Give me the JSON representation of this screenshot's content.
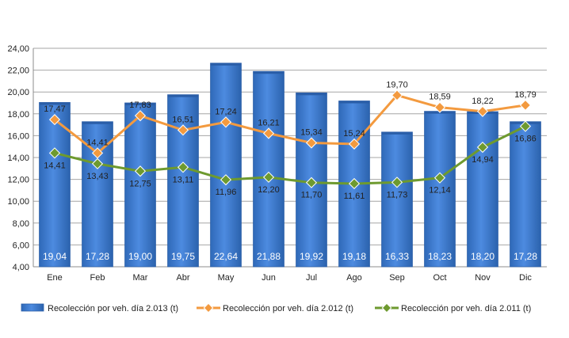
{
  "chart_data": {
    "type": "bar",
    "categories": [
      "Ene",
      "Feb",
      "Mar",
      "Abr",
      "May",
      "Jun",
      "Jul",
      "Ago",
      "Sep",
      "Oct",
      "Nov",
      "Dic"
    ],
    "ylim": [
      4,
      24
    ],
    "yticks": [
      "4,00",
      "6,00",
      "8,00",
      "10,00",
      "12,00",
      "14,00",
      "16,00",
      "18,00",
      "20,00",
      "22,00",
      "24,00"
    ],
    "grid": true,
    "legend_position": "bottom",
    "series": [
      {
        "name": "Recolección por veh. día 2.013 (t)",
        "kind": "bar",
        "color": "#3f7ccc",
        "values": [
          19.04,
          17.28,
          19.0,
          19.75,
          22.64,
          21.88,
          19.92,
          19.18,
          16.33,
          18.23,
          18.2,
          17.28
        ],
        "labels": [
          "19,04",
          "17,28",
          "19,00",
          "19,75",
          "22,64",
          "21,88",
          "19,92",
          "19,18",
          "16,33",
          "18,23",
          "18,20",
          "17,28"
        ]
      },
      {
        "name": "Recolección por veh. día 2.012 (t)",
        "kind": "line",
        "color": "#f39a3f",
        "values": [
          17.47,
          14.41,
          17.83,
          16.51,
          17.24,
          16.21,
          15.34,
          15.24,
          19.7,
          18.59,
          18.22,
          18.79
        ],
        "labels": [
          "17,47",
          "14,41",
          "17,83",
          "16,51",
          "17,24",
          "16,21",
          "15,34",
          "15,24",
          "19,70",
          "18,59",
          "18,22",
          "18,79"
        ]
      },
      {
        "name": "Recolección por veh. día 2.011 (t)",
        "kind": "line",
        "color": "#6e9a2f",
        "values": [
          14.41,
          13.43,
          12.75,
          13.11,
          11.96,
          12.2,
          11.7,
          11.61,
          11.73,
          12.14,
          14.94,
          16.86
        ],
        "labels": [
          "14,41",
          "13,43",
          "12,75",
          "13,11",
          "11,96",
          "12,20",
          "11,70",
          "11,61",
          "11,73",
          "12,14",
          "14,94",
          "16,86"
        ]
      }
    ]
  }
}
